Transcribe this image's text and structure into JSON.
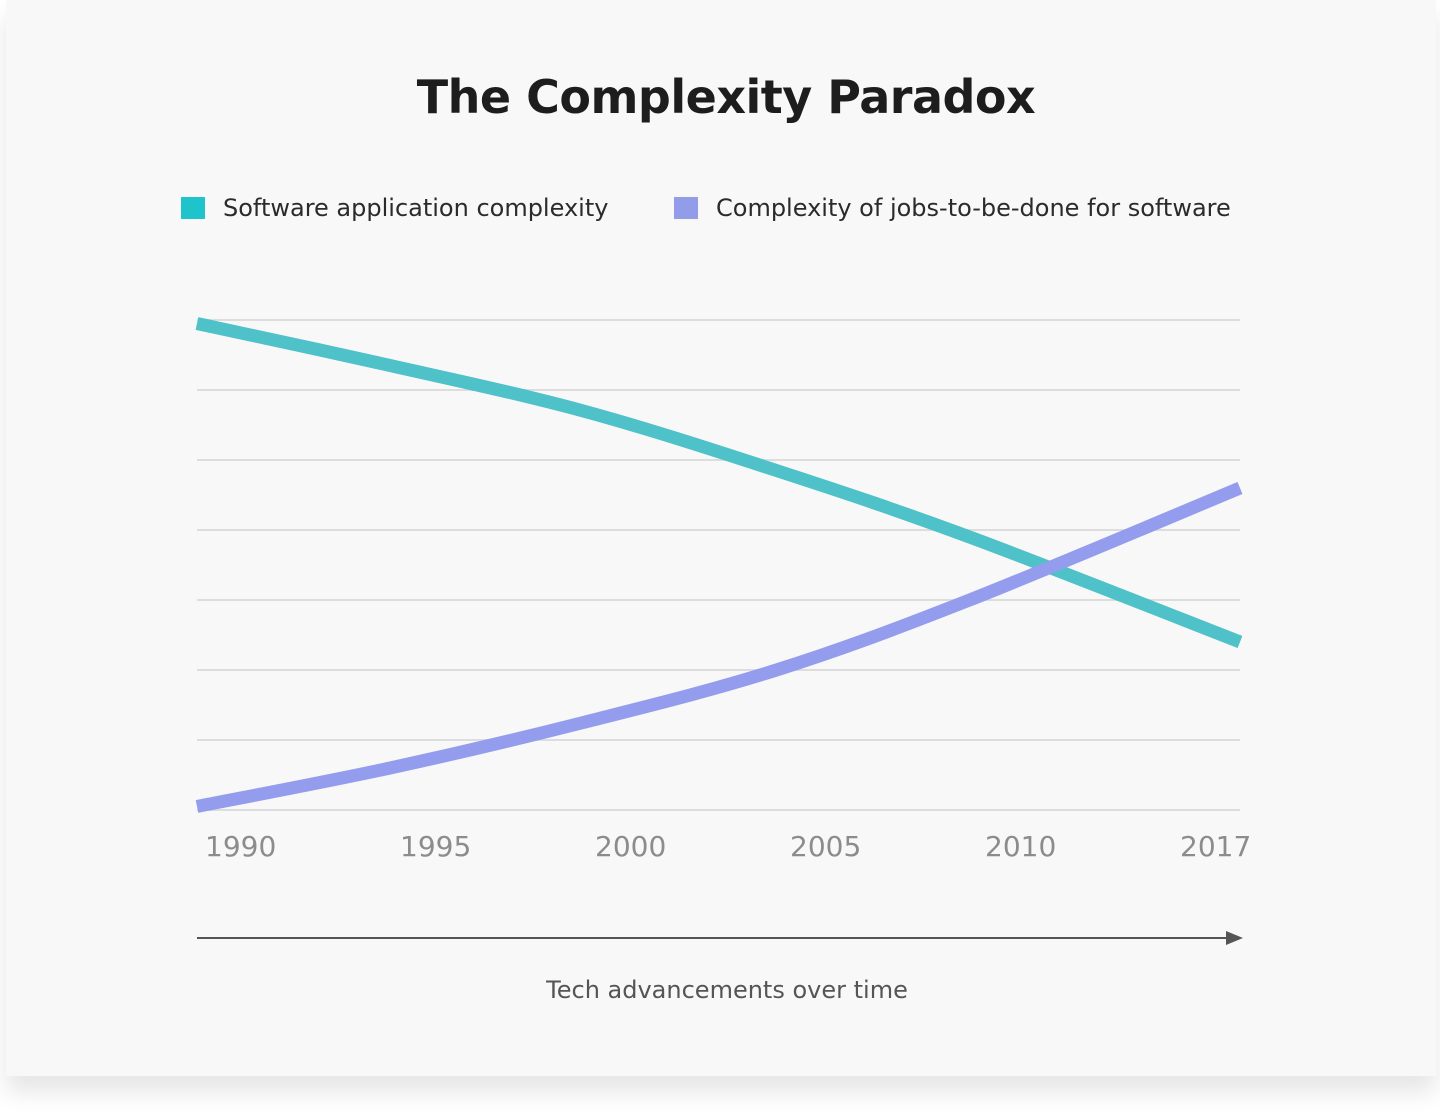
{
  "chart_data": {
    "type": "line",
    "title": "The Complexity Paradox",
    "x": [
      1990,
      1995,
      2000,
      2005,
      2010,
      2017
    ],
    "tick_labels": [
      "1990",
      "1995",
      "2000",
      "2005",
      "2010",
      "2017"
    ],
    "xlabel": "Tech advancements over time",
    "ylabel": "",
    "ylim": [
      0,
      7
    ],
    "grid": true,
    "y_tick_labels_shown": false,
    "legend_position": "top",
    "series": [
      {
        "name": "Software application complexity",
        "color": "#4fc1c9",
        "legend_color": "#1fc3cb",
        "values": [
          6.95,
          6.35,
          5.7,
          4.85,
          3.9,
          2.4
        ]
      },
      {
        "name": "Complexity of jobs-to-be-done for software",
        "color": "#949ded",
        "legend_color": "#939ce9",
        "values": [
          0.05,
          0.6,
          1.25,
          2.0,
          3.0,
          4.6
        ]
      }
    ]
  }
}
